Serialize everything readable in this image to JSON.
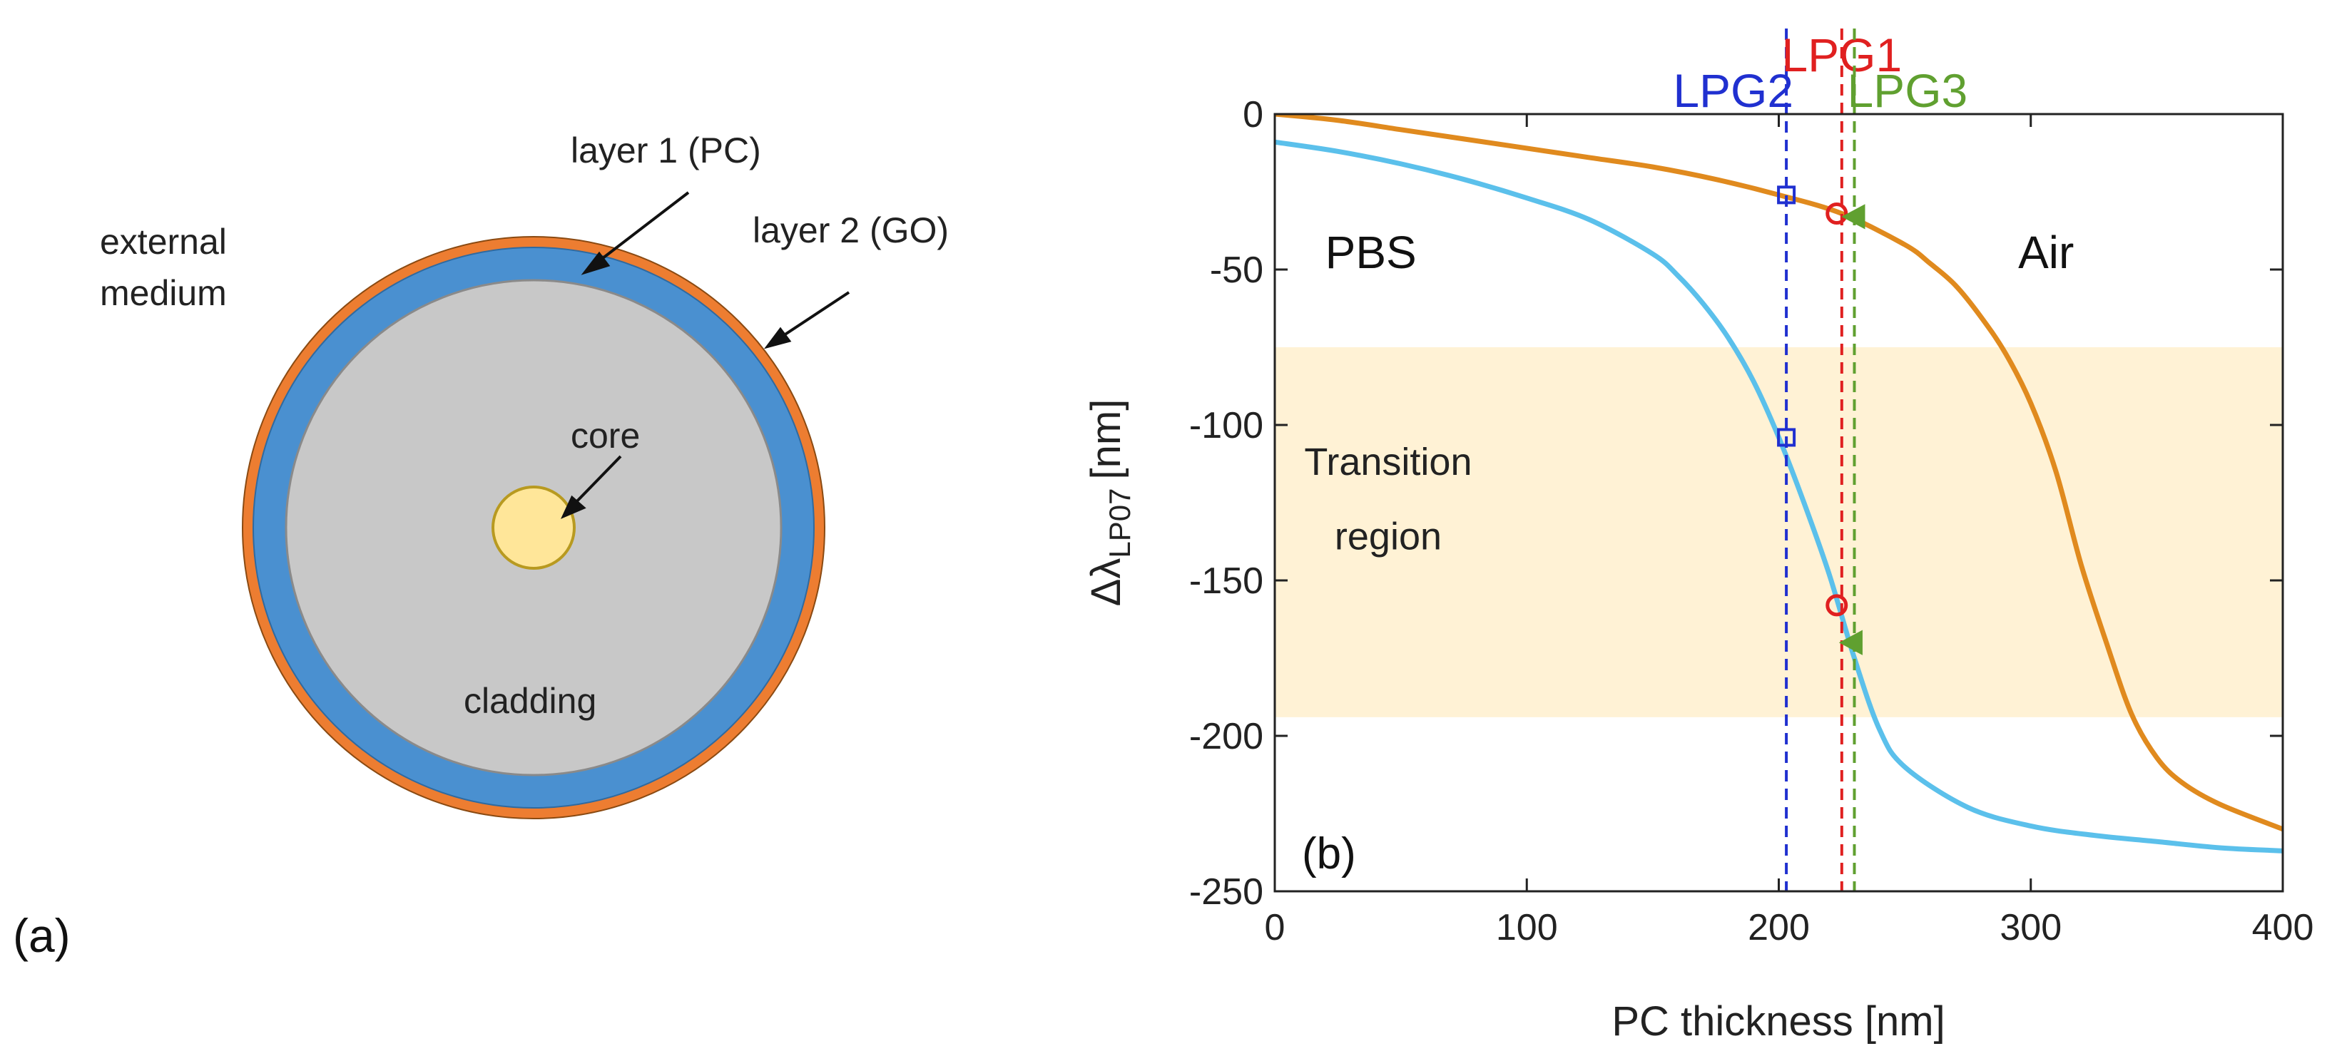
{
  "panel_a": {
    "label": "(a)",
    "labels": {
      "external_medium_line1": "external",
      "external_medium_line2": "medium",
      "layer1": "layer 1 (PC)",
      "layer2": "layer 2 (GO)",
      "core": "core",
      "cladding": "cladding"
    },
    "colors": {
      "layer2": "#ED7D31",
      "layer1": "#4A90D0",
      "cladding": "#C8C8C8",
      "core": "#FFE699"
    }
  },
  "chart_data": {
    "type": "line",
    "panel_label": "(b)",
    "title": "",
    "xlabel": "PC thickness [nm]",
    "ylabel_main": "Δλ",
    "ylabel_sub": "LP07",
    "ylabel_unit": "[nm]",
    "xlim": [
      0,
      400
    ],
    "ylim": [
      -250,
      0
    ],
    "xticks": [
      0,
      100,
      200,
      300,
      400
    ],
    "yticks": [
      0,
      -50,
      -100,
      -150,
      -200,
      -250
    ],
    "grid": false,
    "band": {
      "y_from": -194,
      "y_to": -75,
      "color": "#FFF2D5",
      "label_line1": "Transition",
      "label_line2": "region"
    },
    "series": [
      {
        "name": "Air",
        "color": "#E08A1E",
        "x": [
          0,
          25,
          50,
          75,
          100,
          125,
          150,
          175,
          200,
          225,
          250,
          260,
          270,
          280,
          290,
          300,
          310,
          320,
          330,
          340,
          350,
          360,
          375,
          400
        ],
        "y": [
          0,
          -2,
          -5,
          -8,
          -11,
          -14,
          -17,
          -21,
          -26,
          -32,
          -42,
          -48,
          -55,
          -65,
          -77,
          -93,
          -115,
          -145,
          -170,
          -193,
          -207,
          -215,
          -222,
          -230
        ]
      },
      {
        "name": "PBS",
        "color": "#5BC0EB",
        "x": [
          0,
          25,
          50,
          75,
          100,
          125,
          150,
          160,
          170,
          180,
          190,
          200,
          210,
          220,
          230,
          240,
          250,
          275,
          300,
          325,
          350,
          375,
          400
        ],
        "y": [
          -9,
          -12,
          -16,
          -21,
          -27,
          -34,
          -45,
          -52,
          -61,
          -72,
          -86,
          -104,
          -125,
          -148,
          -175,
          -198,
          -210,
          -223,
          -229,
          -232,
          -234,
          -236,
          -237
        ]
      }
    ],
    "text_labels": [
      {
        "text": "PBS",
        "x": 20,
        "y": -45
      },
      {
        "text": "Air",
        "x": 295,
        "y": -45
      }
    ],
    "vlines": [
      {
        "name": "LPG2",
        "x": 203,
        "color": "#2030D0"
      },
      {
        "name": "LPG1",
        "x": 225,
        "color": "#E02020"
      },
      {
        "name": "LPG3",
        "x": 230,
        "color": "#60A030"
      }
    ],
    "markers": [
      {
        "shape": "square",
        "x": 203,
        "y": -26,
        "color": "#2030D0"
      },
      {
        "shape": "square",
        "x": 203,
        "y": -104,
        "color": "#2030D0"
      },
      {
        "shape": "circle",
        "x": 223,
        "y": -32,
        "color": "#E02020"
      },
      {
        "shape": "circle",
        "x": 223,
        "y": -158,
        "color": "#E02020"
      },
      {
        "shape": "triangle-left",
        "x": 230,
        "y": -33,
        "color": "#60A030"
      },
      {
        "shape": "triangle-left",
        "x": 229,
        "y": -170,
        "color": "#60A030"
      }
    ]
  }
}
